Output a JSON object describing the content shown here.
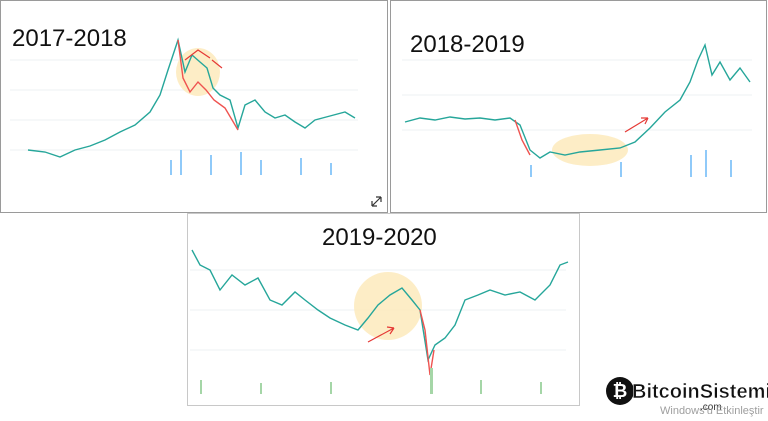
{
  "panels": [
    {
      "label": "2017-2018"
    },
    {
      "label": "2018-2019"
    },
    {
      "label": "2019-2020"
    }
  ],
  "watermark": {
    "name": "BitcoinSistemi",
    "domain": ".com"
  },
  "os_notice": "Windows'u Etkinleştir"
}
